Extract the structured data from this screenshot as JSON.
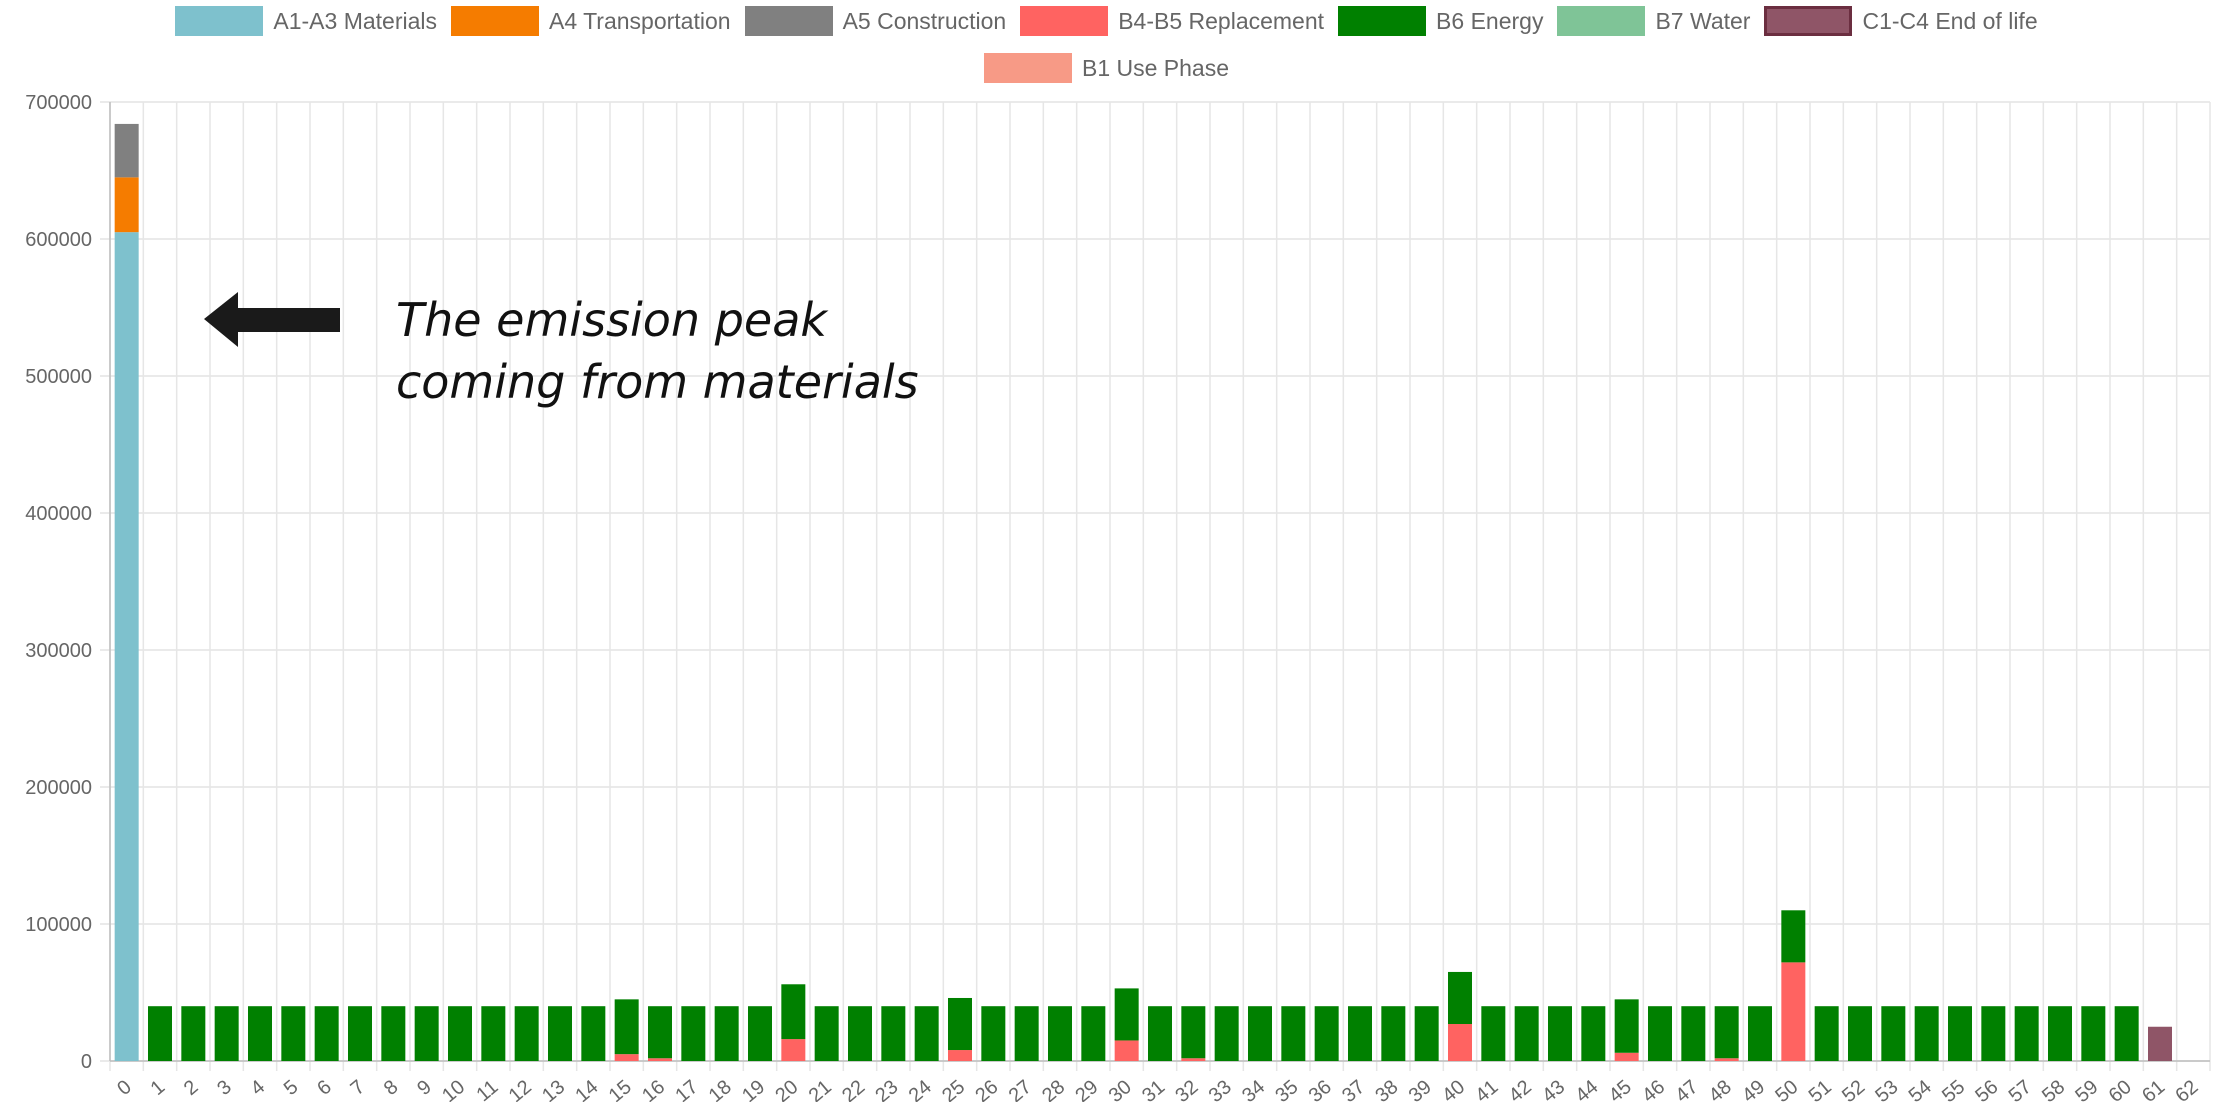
{
  "chart_data": {
    "type": "bar",
    "stacked": true,
    "x": [
      0,
      1,
      2,
      3,
      4,
      5,
      6,
      7,
      8,
      9,
      10,
      11,
      12,
      13,
      14,
      15,
      16,
      17,
      18,
      19,
      20,
      21,
      22,
      23,
      24,
      25,
      26,
      27,
      28,
      29,
      30,
      31,
      32,
      33,
      34,
      35,
      36,
      37,
      38,
      39,
      40,
      41,
      42,
      43,
      44,
      45,
      46,
      47,
      48,
      49,
      50,
      51,
      52,
      53,
      54,
      55,
      56,
      57,
      58,
      59,
      60,
      61,
      62
    ],
    "ylim": [
      0,
      700000
    ],
    "yticks": [
      0,
      100000,
      200000,
      300000,
      400000,
      500000,
      600000,
      700000
    ],
    "grid": true,
    "legend_position": "top",
    "series": [
      {
        "name": "A1-A3 Materials",
        "color": "#7ec1cd",
        "values": [
          605000,
          0,
          0,
          0,
          0,
          0,
          0,
          0,
          0,
          0,
          0,
          0,
          0,
          0,
          0,
          0,
          0,
          0,
          0,
          0,
          0,
          0,
          0,
          0,
          0,
          0,
          0,
          0,
          0,
          0,
          0,
          0,
          0,
          0,
          0,
          0,
          0,
          0,
          0,
          0,
          0,
          0,
          0,
          0,
          0,
          0,
          0,
          0,
          0,
          0,
          0,
          0,
          0,
          0,
          0,
          0,
          0,
          0,
          0,
          0,
          0,
          0,
          0
        ]
      },
      {
        "name": "A4 Transportation",
        "color": "#f57c00",
        "values": [
          40000,
          0,
          0,
          0,
          0,
          0,
          0,
          0,
          0,
          0,
          0,
          0,
          0,
          0,
          0,
          0,
          0,
          0,
          0,
          0,
          0,
          0,
          0,
          0,
          0,
          0,
          0,
          0,
          0,
          0,
          0,
          0,
          0,
          0,
          0,
          0,
          0,
          0,
          0,
          0,
          0,
          0,
          0,
          0,
          0,
          0,
          0,
          0,
          0,
          0,
          0,
          0,
          0,
          0,
          0,
          0,
          0,
          0,
          0,
          0,
          0,
          0,
          0
        ]
      },
      {
        "name": "A5 Construction",
        "color": "#808080",
        "values": [
          39000,
          0,
          0,
          0,
          0,
          0,
          0,
          0,
          0,
          0,
          0,
          0,
          0,
          0,
          0,
          0,
          0,
          0,
          0,
          0,
          0,
          0,
          0,
          0,
          0,
          0,
          0,
          0,
          0,
          0,
          0,
          0,
          0,
          0,
          0,
          0,
          0,
          0,
          0,
          0,
          0,
          0,
          0,
          0,
          0,
          0,
          0,
          0,
          0,
          0,
          0,
          0,
          0,
          0,
          0,
          0,
          0,
          0,
          0,
          0,
          0,
          0,
          0
        ]
      },
      {
        "name": "B4-B5 Replacement",
        "color": "#ff6361",
        "values": [
          0,
          0,
          0,
          0,
          0,
          0,
          0,
          0,
          0,
          0,
          0,
          0,
          0,
          0,
          0,
          5000,
          2000,
          0,
          0,
          0,
          16000,
          0,
          0,
          0,
          0,
          8000,
          0,
          0,
          0,
          0,
          15000,
          0,
          2000,
          0,
          0,
          0,
          0,
          0,
          0,
          0,
          27000,
          0,
          0,
          0,
          0,
          6000,
          0,
          0,
          2000,
          0,
          72000,
          0,
          0,
          0,
          0,
          0,
          0,
          0,
          0,
          0,
          0,
          0,
          0
        ]
      },
      {
        "name": "B6 Energy",
        "color": "#008000",
        "values": [
          0,
          40000,
          40000,
          40000,
          40000,
          40000,
          40000,
          40000,
          40000,
          40000,
          40000,
          40000,
          40000,
          40000,
          40000,
          40000,
          38000,
          40000,
          40000,
          40000,
          40000,
          40000,
          40000,
          40000,
          40000,
          38000,
          40000,
          40000,
          40000,
          40000,
          38000,
          40000,
          38000,
          40000,
          40000,
          40000,
          40000,
          40000,
          40000,
          40000,
          38000,
          40000,
          40000,
          40000,
          40000,
          39000,
          40000,
          40000,
          38000,
          40000,
          38000,
          40000,
          40000,
          40000,
          40000,
          40000,
          40000,
          40000,
          40000,
          40000,
          40000,
          0,
          0
        ]
      },
      {
        "name": "B7 Water",
        "color": "#7fc497",
        "values": [
          0,
          0,
          0,
          0,
          0,
          0,
          0,
          0,
          0,
          0,
          0,
          0,
          0,
          0,
          0,
          0,
          0,
          0,
          0,
          0,
          0,
          0,
          0,
          0,
          0,
          0,
          0,
          0,
          0,
          0,
          0,
          0,
          0,
          0,
          0,
          0,
          0,
          0,
          0,
          0,
          0,
          0,
          0,
          0,
          0,
          0,
          0,
          0,
          0,
          0,
          0,
          0,
          0,
          0,
          0,
          0,
          0,
          0,
          0,
          0,
          0,
          0,
          0
        ]
      },
      {
        "name": "C1-C4 End of life",
        "color": "#8f5567",
        "values": [
          0,
          0,
          0,
          0,
          0,
          0,
          0,
          0,
          0,
          0,
          0,
          0,
          0,
          0,
          0,
          0,
          0,
          0,
          0,
          0,
          0,
          0,
          0,
          0,
          0,
          0,
          0,
          0,
          0,
          0,
          0,
          0,
          0,
          0,
          0,
          0,
          0,
          0,
          0,
          0,
          0,
          0,
          0,
          0,
          0,
          0,
          0,
          0,
          0,
          0,
          0,
          0,
          0,
          0,
          0,
          0,
          0,
          0,
          0,
          0,
          0,
          25000,
          0
        ]
      },
      {
        "name": "B1 Use Phase",
        "color": "#f79a86",
        "values": [
          0,
          0,
          0,
          0,
          0,
          0,
          0,
          0,
          0,
          0,
          0,
          0,
          0,
          0,
          0,
          0,
          0,
          0,
          0,
          0,
          0,
          0,
          0,
          0,
          0,
          0,
          0,
          0,
          0,
          0,
          0,
          0,
          0,
          0,
          0,
          0,
          0,
          0,
          0,
          0,
          0,
          0,
          0,
          0,
          0,
          0,
          0,
          0,
          0,
          0,
          0,
          0,
          0,
          0,
          0,
          0,
          0,
          0,
          0,
          0,
          0,
          0,
          0
        ]
      }
    ],
    "annotation": {
      "lines": [
        "The emission peak",
        "coming from materials"
      ],
      "arrow": "left"
    }
  }
}
